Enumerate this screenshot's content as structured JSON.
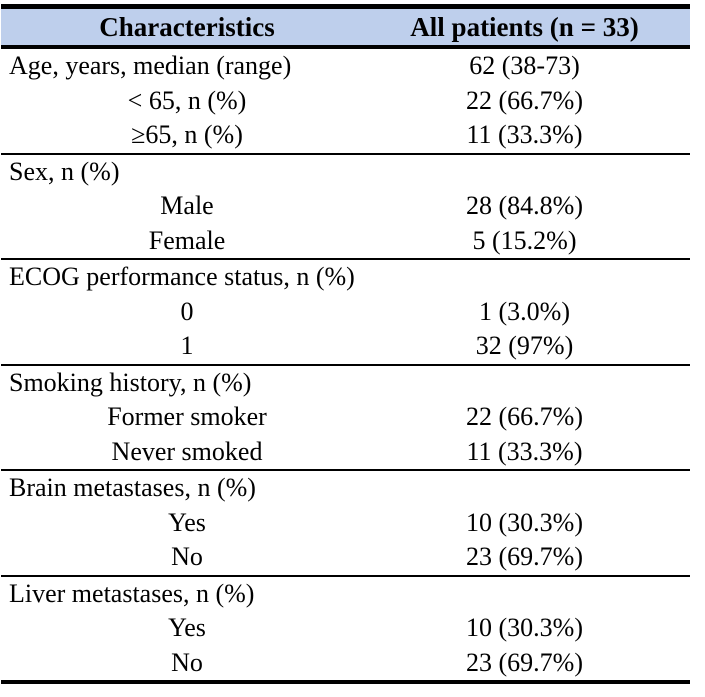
{
  "table": {
    "header_bg": "#becfec",
    "header": {
      "col1": "Characteristics",
      "col2": "All patients (n = 33)"
    },
    "sections": [
      {
        "rows": [
          {
            "label": "Age, years, median (range)",
            "value": "62 (38-73)",
            "sub": false
          },
          {
            "label": "< 65, n (%)",
            "value": "22 (66.7%)",
            "sub": true
          },
          {
            "label": "≥65, n (%)",
            "value": "11 (33.3%)",
            "sub": true
          }
        ]
      },
      {
        "rows": [
          {
            "label": "Sex, n (%)",
            "value": "",
            "sub": false
          },
          {
            "label": "Male",
            "value": "28 (84.8%)",
            "sub": true
          },
          {
            "label": "Female",
            "value": "5 (15.2%)",
            "sub": true
          }
        ]
      },
      {
        "rows": [
          {
            "label": "ECOG performance status, n (%)",
            "value": "",
            "sub": false
          },
          {
            "label": "0",
            "value": "1 (3.0%)",
            "sub": true
          },
          {
            "label": "1",
            "value": "32 (97%)",
            "sub": true
          }
        ]
      },
      {
        "rows": [
          {
            "label": "Smoking history, n (%)",
            "value": "",
            "sub": false
          },
          {
            "label": "Former smoker",
            "value": "22 (66.7%)",
            "sub": true
          },
          {
            "label": "Never smoked",
            "value": "11 (33.3%)",
            "sub": true
          }
        ]
      },
      {
        "rows": [
          {
            "label": "Brain metastases, n (%)",
            "value": "",
            "sub": false
          },
          {
            "label": "Yes",
            "value": "10 (30.3%)",
            "sub": true
          },
          {
            "label": "No",
            "value": "23 (69.7%)",
            "sub": true
          }
        ]
      },
      {
        "rows": [
          {
            "label": "Liver metastases, n (%)",
            "value": "",
            "sub": false
          },
          {
            "label": "Yes",
            "value": "10 (30.3%)",
            "sub": true
          },
          {
            "label": "No",
            "value": "23 (69.7%)",
            "sub": true
          }
        ]
      }
    ]
  }
}
